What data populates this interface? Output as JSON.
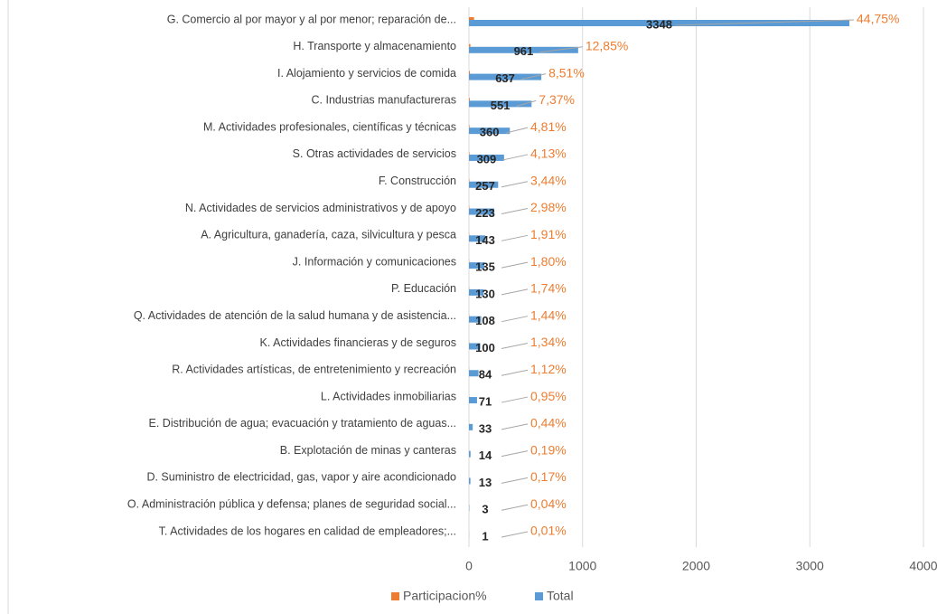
{
  "chart_data": {
    "type": "bar",
    "orientation": "horizontal",
    "categories": [
      "G. Comercio al por mayor y al por menor; reparación de...",
      "H. Transporte y almacenamiento",
      "I. Alojamiento y servicios de comida",
      "C. Industrias manufactureras",
      "M. Actividades profesionales, científicas y técnicas",
      "S. Otras actividades de servicios",
      "F. Construcción",
      "N. Actividades de servicios administrativos y de apoyo",
      "A. Agricultura, ganadería, caza, silvicultura y pesca",
      "J. Información y comunicaciones",
      "P. Educación",
      "Q. Actividades de atención de la salud humana y de asistencia...",
      "K. Actividades financieras y de seguros",
      "R. Actividades artísticas, de entretenimiento y recreación",
      "L. Actividades inmobiliarias",
      "E. Distribución de agua; evacuación y tratamiento de aguas...",
      "B. Explotación de minas y canteras",
      "D. Suministro de electricidad, gas, vapor y aire acondicionado",
      "O. Administración pública y defensa; planes de seguridad social...",
      "T. Actividades de los hogares en calidad de empleadores;..."
    ],
    "series": [
      {
        "name": "Participacion%",
        "color": "#ed7d31",
        "values": [
          44.75,
          12.85,
          8.51,
          7.37,
          4.81,
          4.13,
          3.44,
          2.98,
          1.91,
          1.8,
          1.74,
          1.44,
          1.34,
          1.12,
          0.95,
          0.44,
          0.19,
          0.17,
          0.04,
          0.01
        ],
        "value_labels": [
          "44,75%",
          "12,85%",
          "8,51%",
          "7,37%",
          "4,81%",
          "4,13%",
          "3,44%",
          "2,98%",
          "1,91%",
          "1,80%",
          "1,74%",
          "1,44%",
          "1,34%",
          "1,12%",
          "0,95%",
          "0,44%",
          "0,19%",
          "0,17%",
          "0,04%",
          "0,01%"
        ]
      },
      {
        "name": "Total",
        "color": "#5b9bd5",
        "values": [
          3348,
          961,
          637,
          551,
          360,
          309,
          257,
          223,
          143,
          135,
          130,
          108,
          100,
          84,
          71,
          33,
          14,
          13,
          3,
          1
        ]
      }
    ],
    "xlim": [
      0,
      4000
    ],
    "xticks": [
      0,
      1000,
      2000,
      3000,
      4000
    ],
    "grid": true,
    "legend": "bottom"
  }
}
